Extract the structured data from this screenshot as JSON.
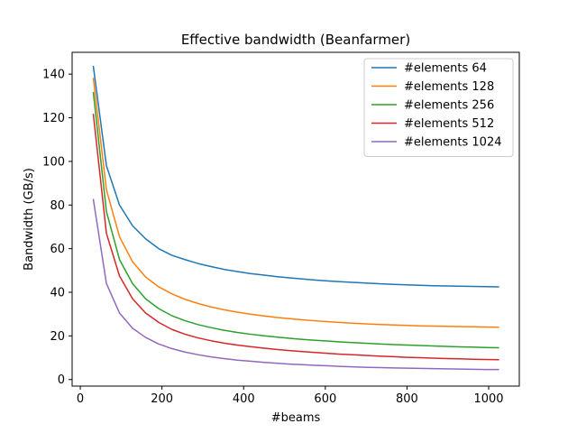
{
  "chart_data": {
    "type": "line",
    "title": "Effective bandwidth (Beanfarmer)",
    "xlabel": "#beams",
    "ylabel": "Bandwidth (GB/s)",
    "xlim": [
      -20,
      1075
    ],
    "ylim": [
      -3,
      150
    ],
    "xticks": [
      0,
      200,
      400,
      600,
      800,
      1000
    ],
    "yticks": [
      0,
      20,
      40,
      60,
      80,
      100,
      120,
      140
    ],
    "grid": false,
    "legend_position": "top-right",
    "x": [
      32,
      64,
      96,
      128,
      160,
      192,
      224,
      256,
      288,
      320,
      352,
      384,
      416,
      448,
      480,
      512,
      544,
      576,
      608,
      640,
      672,
      704,
      736,
      768,
      800,
      832,
      864,
      896,
      928,
      960,
      992,
      1024
    ],
    "series": [
      {
        "name": "#elements 64",
        "color": "#1f77b4",
        "values": [
          143.5,
          98.0,
          80.0,
          70.5,
          64.5,
          60.0,
          57.0,
          55.0,
          53.2,
          51.8,
          50.5,
          49.5,
          48.6,
          47.9,
          47.2,
          46.6,
          46.1,
          45.6,
          45.2,
          44.8,
          44.5,
          44.2,
          43.9,
          43.6,
          43.4,
          43.2,
          43.0,
          42.9,
          42.8,
          42.7,
          42.6,
          42.5
        ]
      },
      {
        "name": "#elements 128",
        "color": "#ff7f0e",
        "values": [
          138.0,
          87.0,
          65.5,
          54.0,
          47.0,
          42.5,
          39.3,
          36.8,
          34.9,
          33.3,
          32.0,
          30.9,
          30.0,
          29.2,
          28.5,
          27.9,
          27.4,
          26.9,
          26.5,
          26.1,
          25.8,
          25.5,
          25.2,
          25.0,
          24.8,
          24.6,
          24.5,
          24.4,
          24.3,
          24.2,
          24.1,
          24.0
        ]
      },
      {
        "name": "#elements 256",
        "color": "#2ca02c",
        "values": [
          131.5,
          77.0,
          55.0,
          44.0,
          37.0,
          32.5,
          29.3,
          27.0,
          25.2,
          23.8,
          22.6,
          21.6,
          20.8,
          20.1,
          19.5,
          18.9,
          18.4,
          18.0,
          17.6,
          17.2,
          16.9,
          16.6,
          16.3,
          16.0,
          15.8,
          15.6,
          15.4,
          15.2,
          15.0,
          14.9,
          14.7,
          14.6
        ]
      },
      {
        "name": "#elements 512",
        "color": "#d62728",
        "values": [
          121.5,
          67.0,
          47.5,
          37.0,
          30.5,
          26.2,
          23.0,
          20.8,
          19.1,
          17.8,
          16.7,
          15.8,
          15.1,
          14.4,
          13.8,
          13.3,
          12.8,
          12.4,
          12.0,
          11.6,
          11.3,
          11.0,
          10.7,
          10.5,
          10.2,
          10.0,
          9.8,
          9.6,
          9.5,
          9.3,
          9.2,
          9.1
        ]
      },
      {
        "name": "#elements 1024",
        "color": "#9467bd",
        "values": [
          82.5,
          44.0,
          30.5,
          23.5,
          19.3,
          16.3,
          14.2,
          12.6,
          11.4,
          10.4,
          9.6,
          8.9,
          8.4,
          7.9,
          7.5,
          7.1,
          6.8,
          6.5,
          6.3,
          6.0,
          5.8,
          5.6,
          5.5,
          5.3,
          5.2,
          5.1,
          5.0,
          4.9,
          4.8,
          4.7,
          4.6,
          4.6
        ]
      }
    ]
  }
}
